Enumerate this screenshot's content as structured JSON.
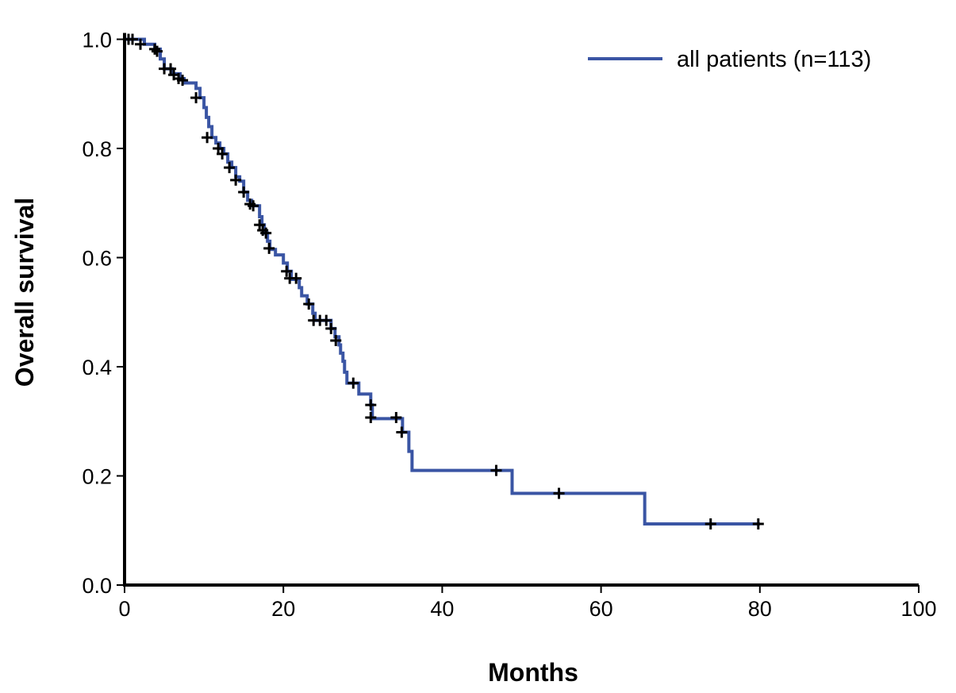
{
  "chart_data": {
    "type": "line",
    "subtype": "kaplan-meier step",
    "xlabel": "Months",
    "ylabel": "Overall survival",
    "xlim": [
      0,
      100
    ],
    "ylim": [
      0,
      1.0
    ],
    "xticks": [
      "0",
      "20",
      "40",
      "60",
      "80",
      "100"
    ],
    "yticks": [
      "0.0",
      "0.2",
      "0.4",
      "0.6",
      "0.8",
      "1.0"
    ],
    "grid": false,
    "legend_position": "top-right",
    "colors": {
      "curve": "#3a55a4",
      "censor": "#000000"
    },
    "series": [
      {
        "name": "all patients (n=113)",
        "steps": [
          [
            0,
            1.0
          ],
          [
            2.5,
            0.991
          ],
          [
            3.8,
            0.982
          ],
          [
            4.5,
            0.964
          ],
          [
            5,
            0.946
          ],
          [
            6,
            0.937
          ],
          [
            7,
            0.928
          ],
          [
            7.5,
            0.92
          ],
          [
            9,
            0.91
          ],
          [
            9.5,
            0.893
          ],
          [
            10,
            0.875
          ],
          [
            10.3,
            0.857
          ],
          [
            10.6,
            0.84
          ],
          [
            11,
            0.82
          ],
          [
            11.5,
            0.81
          ],
          [
            12,
            0.8
          ],
          [
            12.5,
            0.79
          ],
          [
            13,
            0.775
          ],
          [
            13.5,
            0.765
          ],
          [
            14,
            0.748
          ],
          [
            14.5,
            0.74
          ],
          [
            15,
            0.72
          ],
          [
            15.5,
            0.705
          ],
          [
            16,
            0.695
          ],
          [
            17,
            0.675
          ],
          [
            17.3,
            0.66
          ],
          [
            17.6,
            0.645
          ],
          [
            18,
            0.63
          ],
          [
            18.3,
            0.615
          ],
          [
            19,
            0.605
          ],
          [
            20,
            0.59
          ],
          [
            20.5,
            0.575
          ],
          [
            21,
            0.56
          ],
          [
            22,
            0.545
          ],
          [
            22.3,
            0.53
          ],
          [
            23,
            0.515
          ],
          [
            23.7,
            0.498
          ],
          [
            24,
            0.485
          ],
          [
            26,
            0.47
          ],
          [
            26.5,
            0.455
          ],
          [
            27,
            0.44
          ],
          [
            27.2,
            0.425
          ],
          [
            27.5,
            0.41
          ],
          [
            27.7,
            0.39
          ],
          [
            28,
            0.37
          ],
          [
            29.5,
            0.35
          ],
          [
            31,
            0.33
          ],
          [
            31.2,
            0.305
          ],
          [
            35,
            0.28
          ],
          [
            35.8,
            0.245
          ],
          [
            36.2,
            0.21
          ],
          [
            48.8,
            0.168
          ],
          [
            65.5,
            0.112
          ],
          [
            80,
            0.112
          ]
        ],
        "censored": [
          [
            0.5,
            1.0
          ],
          [
            1,
            1.0
          ],
          [
            2,
            0.991
          ],
          [
            3.8,
            0.982
          ],
          [
            4.1,
            0.978
          ],
          [
            5,
            0.946
          ],
          [
            5.8,
            0.946
          ],
          [
            6.2,
            0.935
          ],
          [
            6.8,
            0.928
          ],
          [
            7.3,
            0.925
          ],
          [
            9,
            0.893
          ],
          [
            10.4,
            0.82
          ],
          [
            11.8,
            0.8
          ],
          [
            12.3,
            0.79
          ],
          [
            13.2,
            0.765
          ],
          [
            14,
            0.742
          ],
          [
            15,
            0.72
          ],
          [
            15.8,
            0.698
          ],
          [
            16.2,
            0.695
          ],
          [
            17,
            0.66
          ],
          [
            17.4,
            0.65
          ],
          [
            17.8,
            0.645
          ],
          [
            18.2,
            0.617
          ],
          [
            20.4,
            0.575
          ],
          [
            20.8,
            0.562
          ],
          [
            21.6,
            0.562
          ],
          [
            23.2,
            0.515
          ],
          [
            23.8,
            0.485
          ],
          [
            24.6,
            0.485
          ],
          [
            25.4,
            0.485
          ],
          [
            26,
            0.47
          ],
          [
            26.6,
            0.448
          ],
          [
            28.8,
            0.37
          ],
          [
            31,
            0.33
          ],
          [
            31,
            0.307
          ],
          [
            34.2,
            0.307
          ],
          [
            34.9,
            0.28
          ],
          [
            46.8,
            0.21
          ],
          [
            54.7,
            0.168
          ],
          [
            73.8,
            0.112
          ],
          [
            79.8,
            0.112
          ]
        ]
      }
    ]
  }
}
